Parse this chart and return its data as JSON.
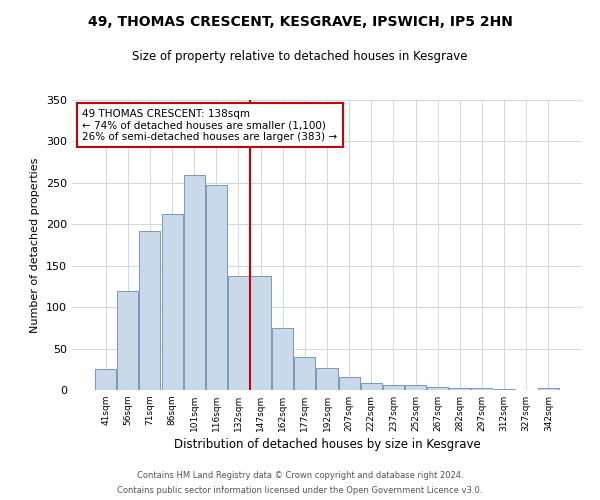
{
  "title1": "49, THOMAS CRESCENT, KESGRAVE, IPSWICH, IP5 2HN",
  "title2": "Size of property relative to detached houses in Kesgrave",
  "xlabel": "Distribution of detached houses by size in Kesgrave",
  "ylabel": "Number of detached properties",
  "categories": [
    "41sqm",
    "56sqm",
    "71sqm",
    "86sqm",
    "101sqm",
    "116sqm",
    "132sqm",
    "147sqm",
    "162sqm",
    "177sqm",
    "192sqm",
    "207sqm",
    "222sqm",
    "237sqm",
    "252sqm",
    "267sqm",
    "282sqm",
    "297sqm",
    "312sqm",
    "327sqm",
    "342sqm"
  ],
  "values": [
    25,
    120,
    192,
    213,
    260,
    247,
    138,
    137,
    75,
    40,
    26,
    16,
    9,
    6,
    6,
    4,
    3,
    3,
    1,
    0,
    2
  ],
  "bar_color": "#c9d9ea",
  "bar_edge_color": "#7799bb",
  "vline_x": 6.5,
  "vline_color": "#cc0000",
  "annotation_title": "49 THOMAS CRESCENT: 138sqm",
  "annotation_line1": "← 74% of detached houses are smaller (1,100)",
  "annotation_line2": "26% of semi-detached houses are larger (383) →",
  "annotation_box_color": "#cc0000",
  "ylim": [
    0,
    350
  ],
  "yticks": [
    0,
    50,
    100,
    150,
    200,
    250,
    300,
    350
  ],
  "footer1": "Contains HM Land Registry data © Crown copyright and database right 2024.",
  "footer2": "Contains public sector information licensed under the Open Government Licence v3.0.",
  "bg_color": "#ffffff"
}
